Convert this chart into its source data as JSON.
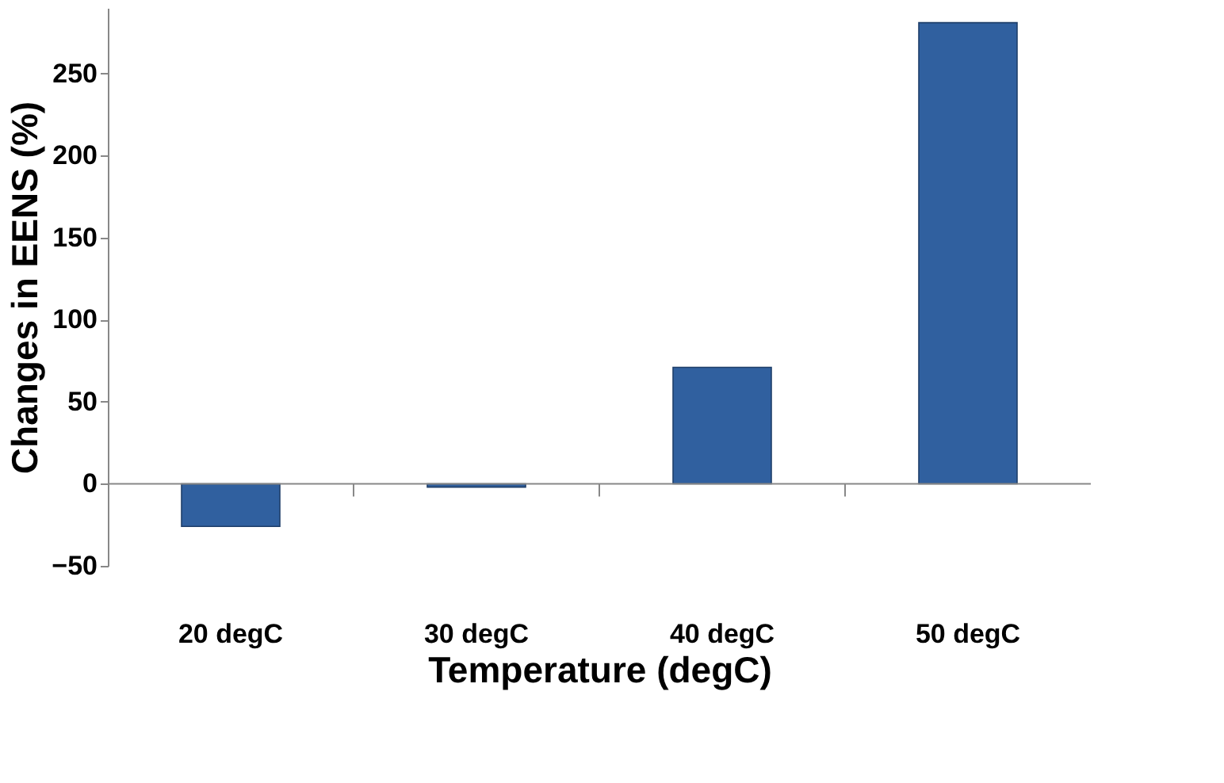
{
  "chart_data": {
    "type": "bar",
    "xlabel": "Temperature (degC)",
    "ylabel": "Changes in EENS  (%)",
    "categories": [
      "20 degC",
      "30 degC",
      "40 degC",
      "50 degC"
    ],
    "values": [
      -26,
      -2,
      71,
      281
    ],
    "color": "#30609f",
    "ylim": [
      -50,
      290
    ],
    "yticks": [
      -50,
      0,
      50,
      100,
      150,
      200,
      250
    ],
    "grid": false,
    "ref_lines": [
      {
        "axis": "y",
        "value": 0,
        "color": "#888888"
      }
    ]
  }
}
